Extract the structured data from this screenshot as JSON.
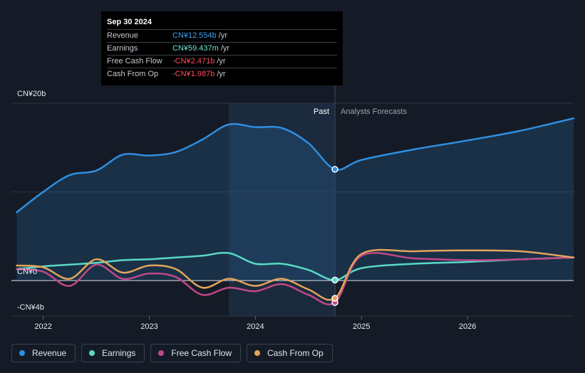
{
  "tooltip": {
    "date": "Sep 30 2024",
    "rows": [
      {
        "label": "Revenue",
        "value": "CN¥12.554b",
        "unit": "/yr",
        "color": "#3ea1ec"
      },
      {
        "label": "Earnings",
        "value": "CN¥59.437m",
        "unit": "/yr",
        "color": "#6ee7d3"
      },
      {
        "label": "Free Cash Flow",
        "value": "-CN¥2.471b",
        "unit": "/yr",
        "color": "#ff4d5e"
      },
      {
        "label": "Cash From Op",
        "value": "-CN¥1.987b",
        "unit": "/yr",
        "color": "#ff4d5e"
      }
    ]
  },
  "legend": [
    {
      "label": "Revenue",
      "color": "#2f8fe0"
    },
    {
      "label": "Earnings",
      "color": "#5ad8c4"
    },
    {
      "label": "Free Cash Flow",
      "color": "#c0478a"
    },
    {
      "label": "Cash From Op",
      "color": "#e3a45a"
    }
  ],
  "chart_data": {
    "type": "line",
    "y_tick_labels": [
      "CN¥20b",
      "CN¥0",
      "-CN¥4b"
    ],
    "x_tick_labels": [
      "2022",
      "2023",
      "2024",
      "2025",
      "2026"
    ],
    "x_ticks": [
      2022.0,
      2023.0,
      2024.0,
      2025.0,
      2026.0
    ],
    "ylim": [
      -4,
      20
    ],
    "xlim": [
      2021.7,
      2027.0
    ],
    "divider_x": 2024.75,
    "past_label": "Past",
    "forecast_label": "Analysts Forecasts",
    "highlight_start": 2023.75,
    "series": [
      {
        "name": "Revenue",
        "color": "#2f8fe0",
        "fill": true,
        "x": [
          2021.75,
          2022.0,
          2022.25,
          2022.5,
          2022.75,
          2023.0,
          2023.25,
          2023.5,
          2023.75,
          2024.0,
          2024.25,
          2024.5,
          2024.75,
          2025.0,
          2025.5,
          2026.0,
          2026.5,
          2027.0
        ],
        "y": [
          7.7,
          10.0,
          11.9,
          12.4,
          14.2,
          14.1,
          14.5,
          15.9,
          17.6,
          17.3,
          17.2,
          15.5,
          12.55,
          13.6,
          14.8,
          15.8,
          16.9,
          18.3
        ]
      },
      {
        "name": "Earnings",
        "color": "#5ad8c4",
        "fill": false,
        "x": [
          2021.75,
          2022.0,
          2022.25,
          2022.5,
          2022.75,
          2023.0,
          2023.25,
          2023.5,
          2023.75,
          2024.0,
          2024.25,
          2024.5,
          2024.75,
          2025.0,
          2025.5,
          2026.0,
          2026.5,
          2027.0
        ],
        "y": [
          1.3,
          1.6,
          1.8,
          2.0,
          2.3,
          2.4,
          2.6,
          2.8,
          3.1,
          1.9,
          1.9,
          1.2,
          0.06,
          1.4,
          1.9,
          2.1,
          2.4,
          2.6
        ]
      },
      {
        "name": "Free Cash Flow",
        "color": "#c0478a",
        "fill": false,
        "x": [
          2021.75,
          2022.0,
          2022.25,
          2022.5,
          2022.75,
          2023.0,
          2023.25,
          2023.5,
          2023.75,
          2024.0,
          2024.25,
          2024.5,
          2024.75,
          2025.0,
          2025.5,
          2026.0,
          2026.5,
          2027.0
        ],
        "y": [
          1.3,
          1.0,
          -0.6,
          1.8,
          0.2,
          0.8,
          0.4,
          -1.6,
          -0.8,
          -1.2,
          -0.4,
          -1.6,
          -2.47,
          2.8,
          2.5,
          2.3,
          2.4,
          2.6
        ]
      },
      {
        "name": "Cash From Op",
        "color": "#e3a45a",
        "fill": false,
        "x": [
          2021.75,
          2022.0,
          2022.25,
          2022.5,
          2022.75,
          2023.0,
          2023.25,
          2023.5,
          2023.75,
          2024.0,
          2024.25,
          2024.5,
          2024.75,
          2025.0,
          2025.5,
          2026.0,
          2026.5,
          2027.0
        ],
        "y": [
          1.7,
          1.5,
          0.2,
          2.4,
          0.9,
          1.7,
          1.3,
          -0.8,
          0.2,
          -0.6,
          0.2,
          -1.0,
          -1.99,
          3.0,
          3.3,
          3.4,
          3.3,
          2.6
        ]
      }
    ]
  }
}
